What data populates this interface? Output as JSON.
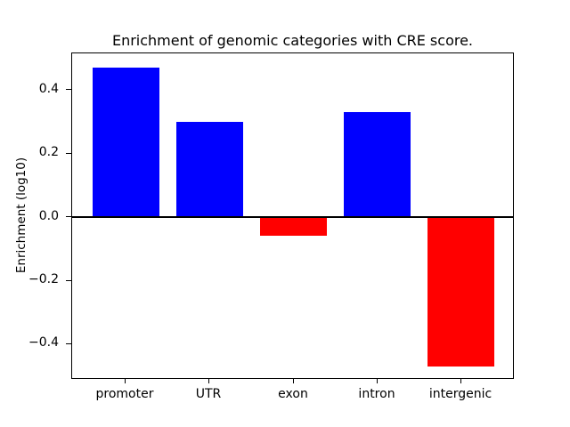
{
  "figure": {
    "background_color": "#ffffff"
  },
  "chart_data": {
    "type": "bar",
    "title": "Enrichment of genomic categories with CRE score.",
    "xlabel": "",
    "ylabel": "Enrichment (log10)",
    "categories": [
      "promoter",
      "UTR",
      "exon",
      "intron",
      "intergenic"
    ],
    "values": [
      0.47,
      0.3,
      -0.06,
      0.33,
      -0.47
    ],
    "bar_colors": [
      "#0000ff",
      "#0000ff",
      "#ff0000",
      "#0000ff",
      "#ff0000"
    ],
    "positive_color": "#0000ff",
    "negative_color": "#ff0000",
    "bar_width": 0.8,
    "xlim": [
      -0.64,
      4.64
    ],
    "ylim": [
      -0.512,
      0.515
    ],
    "yticks": [
      0.4,
      0.2,
      0.0,
      -0.2,
      -0.4
    ],
    "ytick_labels": [
      "0.4",
      "0.2",
      "0.0",
      "−0.2",
      "−0.4"
    ],
    "zero_line": true,
    "zero_line_color": "#000000",
    "grid": false,
    "legend": null
  }
}
